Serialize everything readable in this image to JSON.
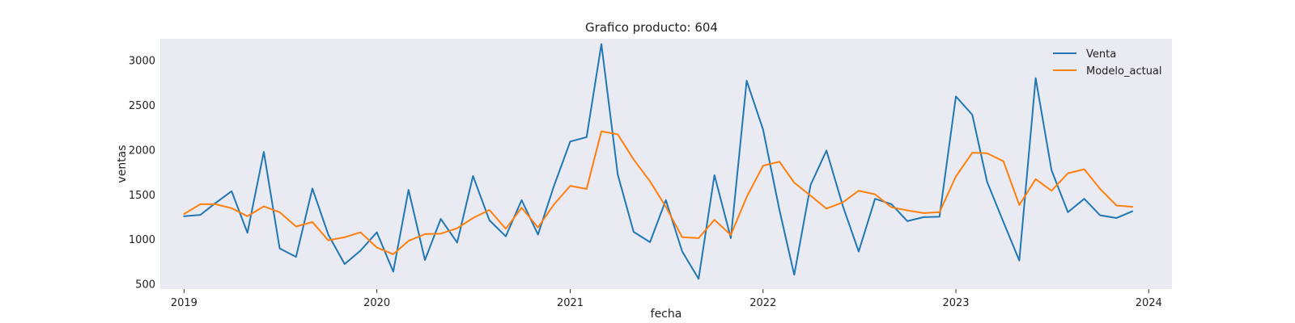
{
  "chart_data": {
    "type": "line",
    "title": "Grafico producto: 604",
    "xlabel": "fecha",
    "ylabel": "ventas",
    "ylim": [
      450,
      3250
    ],
    "yticks": [
      500,
      1000,
      1500,
      2000,
      2500,
      3000
    ],
    "xlim": [
      "2018-11-17",
      "2024-02-14"
    ],
    "xticks": [
      "2019",
      "2020",
      "2021",
      "2022",
      "2023",
      "2024"
    ],
    "grid": false,
    "legend_position": "top-right",
    "x": [
      "2019-01",
      "2019-02",
      "2019-03",
      "2019-04",
      "2019-05",
      "2019-06",
      "2019-07",
      "2019-08",
      "2019-09",
      "2019-10",
      "2019-11",
      "2019-12",
      "2020-01",
      "2020-02",
      "2020-03",
      "2020-04",
      "2020-05",
      "2020-06",
      "2020-07",
      "2020-08",
      "2020-09",
      "2020-10",
      "2020-11",
      "2020-12",
      "2021-01",
      "2021-02",
      "2021-03",
      "2021-04",
      "2021-05",
      "2021-06",
      "2021-07",
      "2021-08",
      "2021-09",
      "2021-10",
      "2021-11",
      "2021-12",
      "2022-01",
      "2022-02",
      "2022-03",
      "2022-04",
      "2022-05",
      "2022-06",
      "2022-07",
      "2022-08",
      "2022-09",
      "2022-10",
      "2022-11",
      "2022-12",
      "2023-01",
      "2023-02",
      "2023-03",
      "2023-04",
      "2023-05",
      "2023-06",
      "2023-07",
      "2023-08",
      "2023-09",
      "2023-10",
      "2023-11",
      "2023-12"
    ],
    "series": [
      {
        "name": "Venta",
        "color": "#1f77b4",
        "values": [
          1265,
          1280,
          1410,
          1545,
          1080,
          1985,
          905,
          810,
          1575,
          1060,
          730,
          880,
          1085,
          645,
          1560,
          775,
          1235,
          970,
          1715,
          1220,
          1040,
          1445,
          1060,
          1600,
          2100,
          2150,
          3190,
          1730,
          1090,
          975,
          1445,
          870,
          565,
          1725,
          1020,
          2780,
          2235,
          1335,
          610,
          1615,
          2000,
          1380,
          870,
          1460,
          1400,
          1210,
          1255,
          1260,
          2605,
          2400,
          1650,
          1200,
          770,
          2810,
          1780,
          1310,
          1460,
          1275,
          1245,
          1320
        ]
      },
      {
        "name": "Modelo_actual",
        "color": "#ff7f0e",
        "values": [
          1290,
          1400,
          1400,
          1355,
          1265,
          1375,
          1310,
          1150,
          1200,
          995,
          1030,
          1085,
          915,
          840,
          990,
          1065,
          1070,
          1130,
          1245,
          1335,
          1125,
          1360,
          1140,
          1395,
          1605,
          1570,
          2215,
          2180,
          1900,
          1655,
          1370,
          1030,
          1020,
          1225,
          1055,
          1480,
          1830,
          1875,
          1640,
          1495,
          1350,
          1420,
          1550,
          1510,
          1365,
          1330,
          1300,
          1310,
          1710,
          1975,
          1970,
          1880,
          1390,
          1680,
          1550,
          1745,
          1790,
          1570,
          1385,
          1370
        ]
      }
    ]
  }
}
